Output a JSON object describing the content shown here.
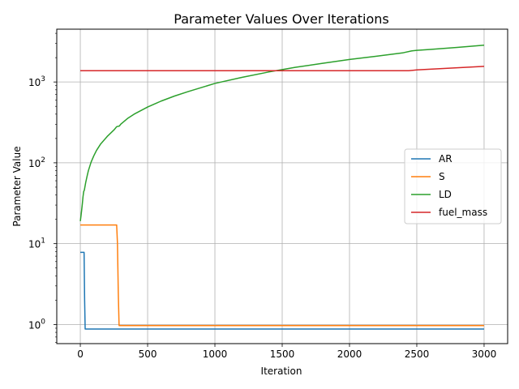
{
  "chart_data": {
    "type": "line",
    "title": "Parameter Values Over Iterations",
    "xlabel": "Iteration",
    "ylabel": "Parameter Value",
    "xlim": [
      -175,
      3175
    ],
    "ylim": [
      0.58,
      4500
    ],
    "yscale": "log",
    "grid": true,
    "legend_position": "center-right",
    "x_ticks": [
      0,
      500,
      1000,
      1500,
      2000,
      2500,
      3000
    ],
    "x_tick_labels": [
      "0",
      "500",
      "1000",
      "1500",
      "2000",
      "2500",
      "3000"
    ],
    "y_ticks": [
      1,
      10,
      100,
      1000
    ],
    "y_tick_base": "10",
    "y_tick_exponents": [
      "0",
      "1",
      "2",
      "3"
    ],
    "series": [
      {
        "name": "AR",
        "color": "#1f77b4",
        "points": [
          [
            0,
            7.8
          ],
          [
            28,
            7.8
          ],
          [
            32,
            2.0
          ],
          [
            36,
            0.88
          ],
          [
            3000,
            0.88
          ]
        ]
      },
      {
        "name": "S",
        "color": "#ff7f0e",
        "points": [
          [
            0,
            17.0
          ],
          [
            270,
            17.0
          ],
          [
            276,
            10.0
          ],
          [
            282,
            2.5
          ],
          [
            288,
            0.97
          ],
          [
            3000,
            0.97
          ]
        ]
      },
      {
        "name": "LD",
        "color": "#2ca02c",
        "points": [
          [
            0,
            19
          ],
          [
            5,
            22
          ],
          [
            10,
            26
          ],
          [
            15,
            31
          ],
          [
            20,
            38
          ],
          [
            25,
            44
          ],
          [
            30,
            46
          ],
          [
            40,
            57
          ],
          [
            50,
            68
          ],
          [
            60,
            80
          ],
          [
            80,
            102
          ],
          [
            100,
            122
          ],
          [
            120,
            142
          ],
          [
            150,
            170
          ],
          [
            200,
            212
          ],
          [
            250,
            255
          ],
          [
            270,
            280
          ],
          [
            290,
            285
          ],
          [
            300,
            300
          ],
          [
            350,
            353
          ],
          [
            400,
            400
          ],
          [
            500,
            490
          ],
          [
            600,
            580
          ],
          [
            700,
            670
          ],
          [
            800,
            760
          ],
          [
            1000,
            960
          ],
          [
            1200,
            1140
          ],
          [
            1400,
            1330
          ],
          [
            1600,
            1520
          ],
          [
            1800,
            1700
          ],
          [
            2000,
            1900
          ],
          [
            2200,
            2080
          ],
          [
            2400,
            2300
          ],
          [
            2460,
            2420
          ],
          [
            2500,
            2460
          ],
          [
            2600,
            2530
          ],
          [
            2800,
            2680
          ],
          [
            3000,
            2850
          ]
        ]
      },
      {
        "name": "fuel_mass",
        "color": "#d62728",
        "points": [
          [
            0,
            1380
          ],
          [
            2440,
            1380
          ],
          [
            2500,
            1410
          ],
          [
            2700,
            1470
          ],
          [
            3000,
            1560
          ]
        ]
      }
    ]
  }
}
